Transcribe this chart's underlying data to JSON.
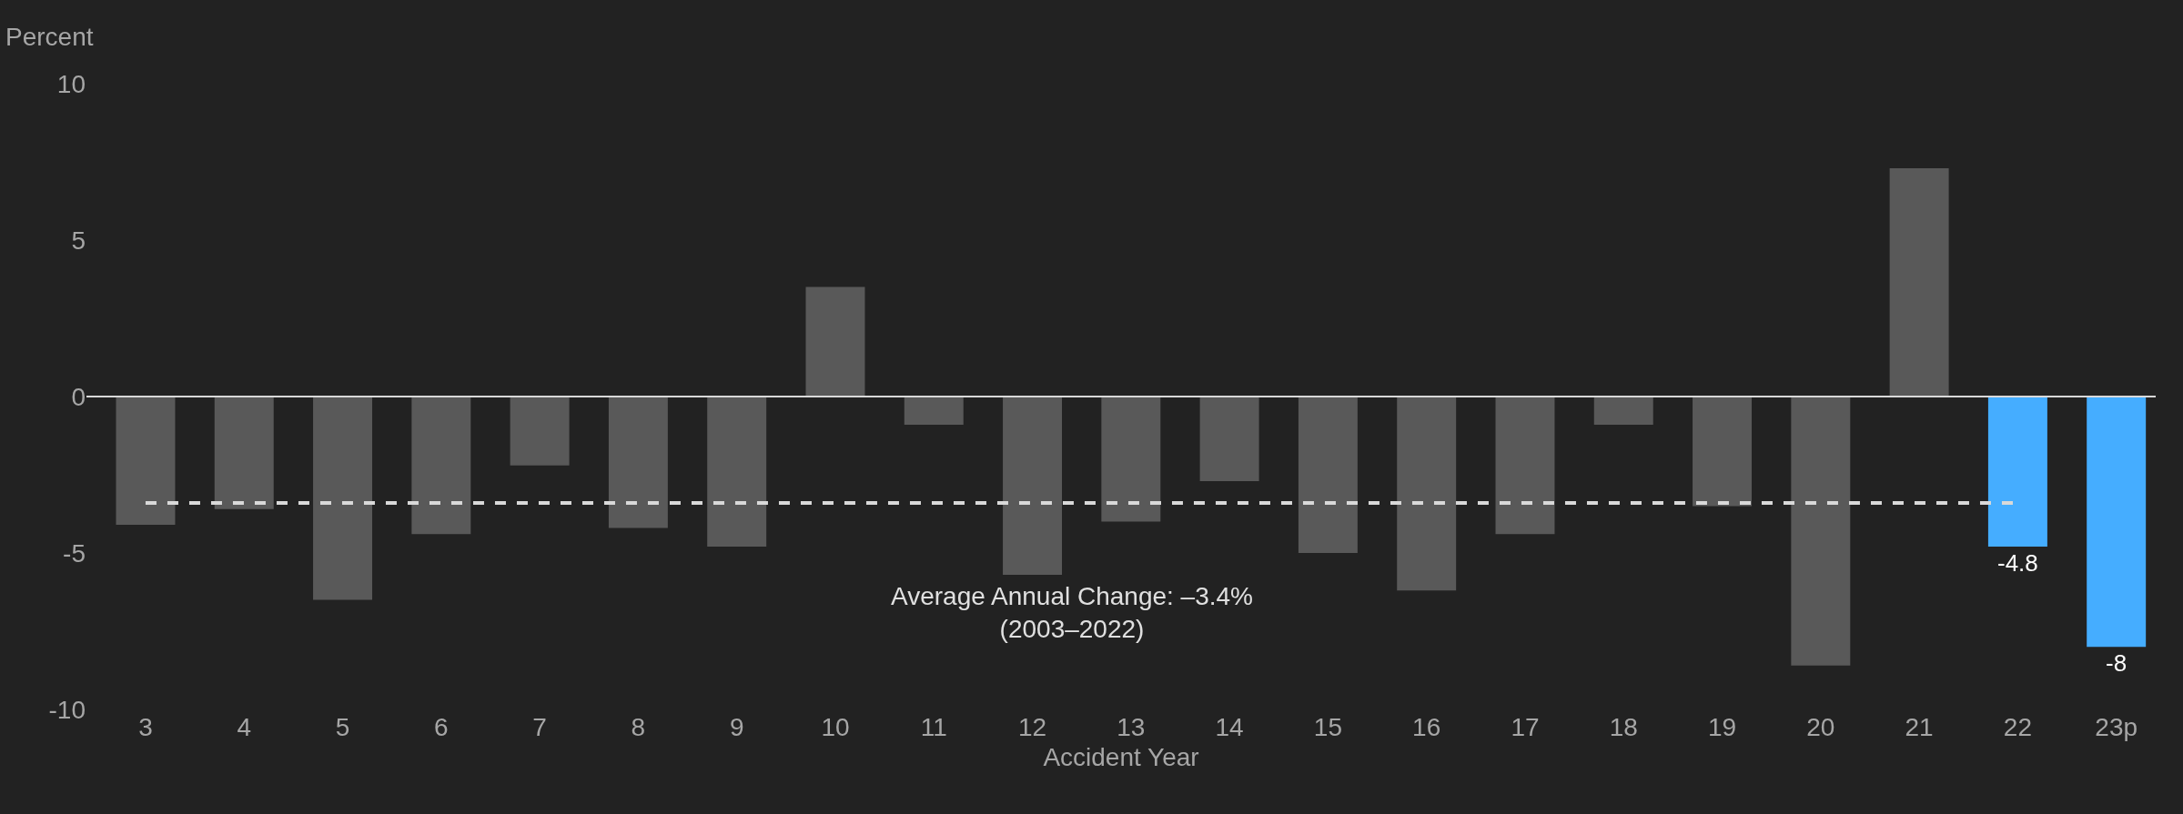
{
  "chart_data": {
    "type": "bar",
    "ylabel": "Percent",
    "xlabel": "Accident Year",
    "categories": [
      "3",
      "4",
      "5",
      "6",
      "7",
      "8",
      "9",
      "10",
      "11",
      "12",
      "13",
      "14",
      "15",
      "16",
      "17",
      "18",
      "19",
      "20",
      "21",
      "22",
      "23p"
    ],
    "values": [
      -4.1,
      -3.6,
      -6.5,
      -4.4,
      -2.2,
      -4.2,
      -4.8,
      3.5,
      -0.9,
      -5.7,
      -4.0,
      -2.7,
      -5.0,
      -6.2,
      -4.4,
      -0.9,
      -3.5,
      -8.6,
      7.3,
      -4.8,
      -8
    ],
    "colors": [
      "#595959",
      "#595959",
      "#595959",
      "#595959",
      "#595959",
      "#595959",
      "#595959",
      "#595959",
      "#595959",
      "#595959",
      "#595959",
      "#595959",
      "#595959",
      "#595959",
      "#595959",
      "#595959",
      "#595959",
      "#595959",
      "#595959",
      "#45adff",
      "#45adff"
    ],
    "value_labels": [
      null,
      null,
      null,
      null,
      null,
      null,
      null,
      null,
      null,
      null,
      null,
      null,
      null,
      null,
      null,
      null,
      null,
      null,
      null,
      "-4.8",
      "-8"
    ],
    "ylim": [
      -10,
      10
    ],
    "yticks": [
      -10,
      -5,
      0,
      5,
      10
    ],
    "ref_lines": [
      {
        "axis": "y",
        "value": 0,
        "color": "#d9d9d9",
        "line_style": "solid"
      },
      {
        "axis": "y",
        "value": -3.4,
        "label": "Average Annual Change: –3.4%\n(2003–2022)",
        "color": "#d9d9d9",
        "line_style": "dashed"
      }
    ],
    "grid": false
  }
}
